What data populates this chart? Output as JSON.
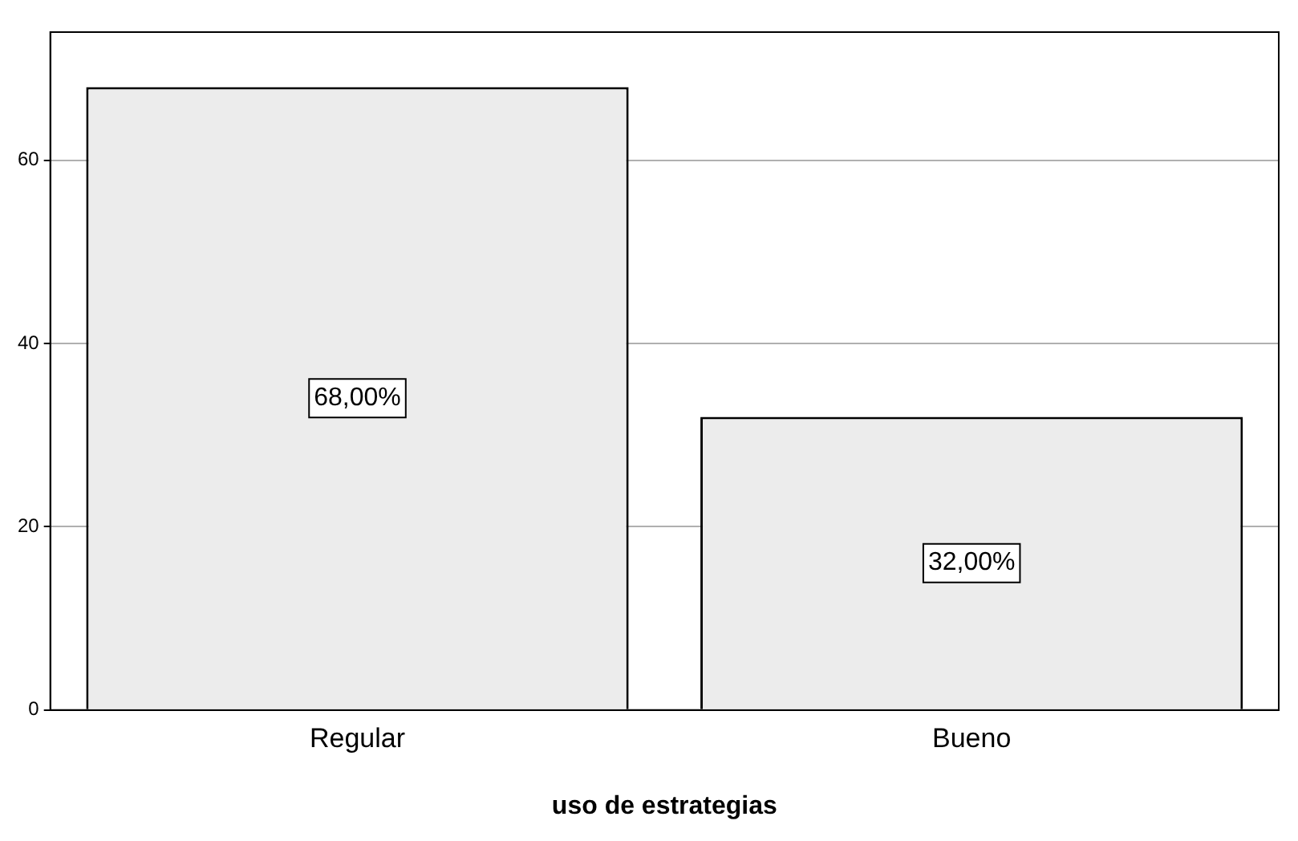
{
  "chart_data": {
    "type": "bar",
    "xlabel": "uso de estrategias",
    "categories": [
      "Regular",
      "Bueno"
    ],
    "values": [
      68,
      32
    ],
    "value_labels": [
      "68,00%",
      "32,00%"
    ],
    "color": "#ececec",
    "ylim": [
      0,
      74
    ],
    "yticks": [
      0,
      20,
      40,
      60
    ],
    "grid": "y",
    "legend": false
  }
}
